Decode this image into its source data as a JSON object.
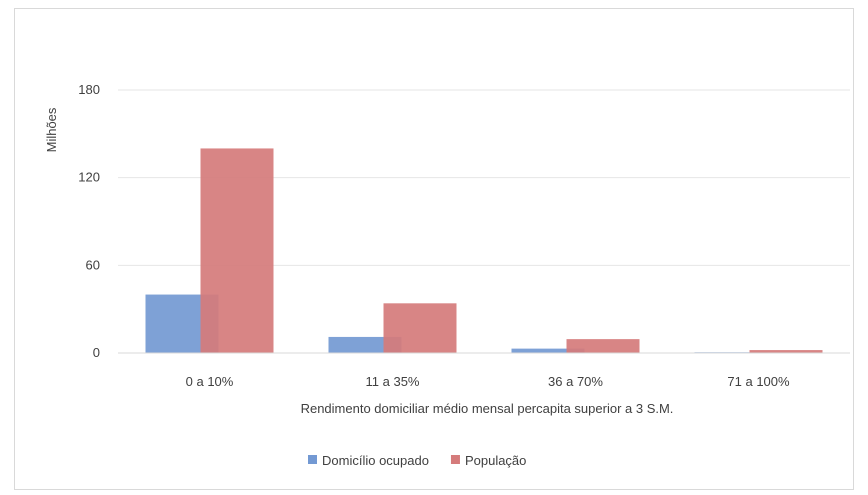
{
  "chart_data": {
    "type": "bar",
    "title": "",
    "xlabel": "Rendimento domiciliar médio mensal percapita superior a 3 S.M.",
    "ylabel": "Milhões",
    "categories": [
      "0 a 10%",
      "11 a 35%",
      "36 a 70%",
      "71 a 100%"
    ],
    "series": [
      {
        "name": "Domicílio ocupado",
        "color": "#7399d3",
        "values": [
          40,
          11,
          3,
          0.5
        ]
      },
      {
        "name": "População",
        "color": "#d57b7b",
        "values": [
          140,
          34,
          9.5,
          2
        ]
      }
    ],
    "ylim": [
      0,
      180
    ],
    "yticks": [
      0,
      60,
      120,
      180
    ],
    "grid": true,
    "legend_position": "bottom",
    "bar_overlap": true
  }
}
